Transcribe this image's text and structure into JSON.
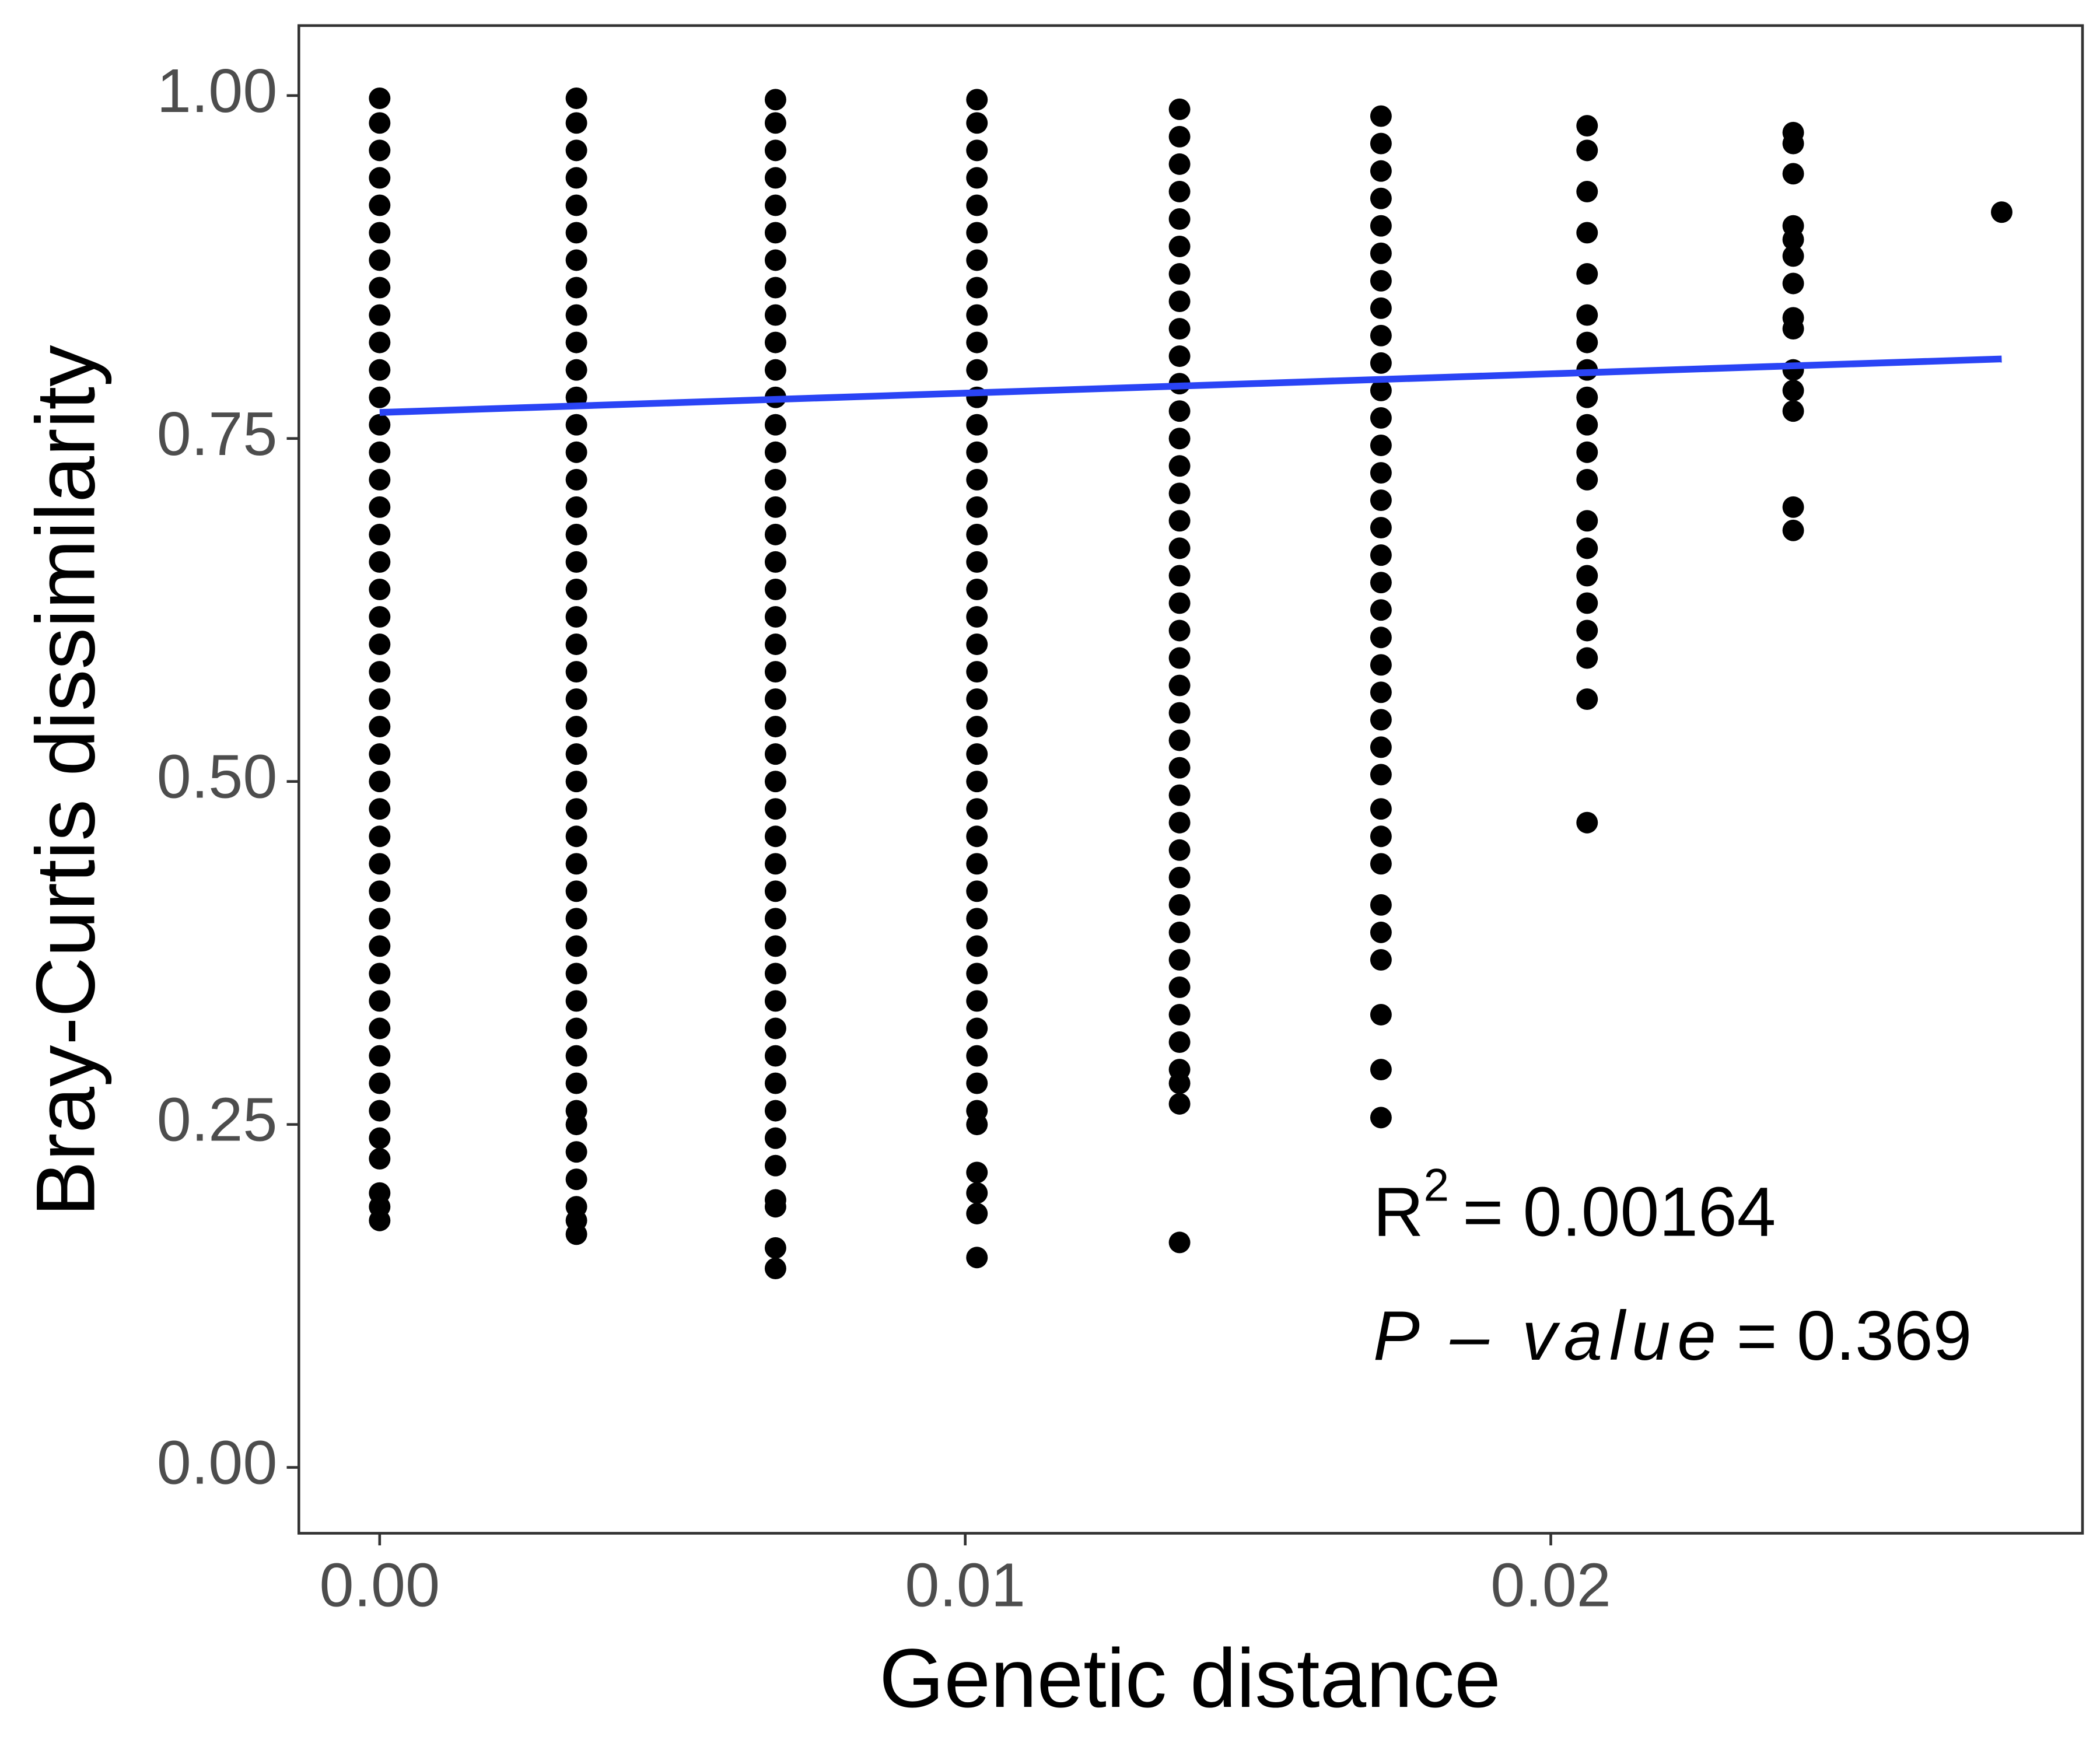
{
  "chart_data": {
    "type": "scatter",
    "xlabel": "Genetic distance",
    "ylabel": "Bray-Curtis dissimilarity",
    "xlim": [
      -0.00138,
      0.02908
    ],
    "ylim": [
      -0.048,
      1.051
    ],
    "xticks": [
      {
        "value": 0,
        "label": "0.00"
      },
      0.01,
      0.02
    ],
    "yticks": [
      {
        "value": 0,
        "label": "0.00"
      },
      0.25,
      {
        "value": 0.5,
        "label": "0.50"
      },
      0.75,
      {
        "value": 1,
        "label": "1.00"
      }
    ],
    "color": "#000000",
    "groups": [
      {
        "x": 0,
        "values": [
          0.998,
          0.98,
          0.96,
          0.94,
          0.92,
          0.9,
          0.88,
          0.86,
          0.84,
          0.82,
          0.8,
          0.78,
          0.76,
          0.74,
          0.72,
          0.7,
          0.68,
          0.66,
          0.64,
          0.62,
          0.6,
          0.58,
          0.56,
          0.54,
          0.52,
          0.5,
          0.48,
          0.46,
          0.44,
          0.42,
          0.4,
          0.38,
          0.36,
          0.34,
          0.32,
          0.3,
          0.28,
          0.26,
          0.24,
          0.225,
          0.2,
          0.19,
          0.18
        ]
      },
      {
        "x": 0.00336,
        "values": [
          0.998,
          0.98,
          0.96,
          0.94,
          0.92,
          0.9,
          0.88,
          0.86,
          0.84,
          0.82,
          0.8,
          0.78,
          0.76,
          0.74,
          0.72,
          0.7,
          0.68,
          0.66,
          0.64,
          0.62,
          0.6,
          0.58,
          0.56,
          0.54,
          0.52,
          0.5,
          0.48,
          0.46,
          0.44,
          0.42,
          0.4,
          0.38,
          0.36,
          0.34,
          0.32,
          0.3,
          0.28,
          0.26,
          0.25,
          0.23,
          0.21,
          0.19,
          0.18,
          0.17
        ]
      },
      {
        "x": 0.00676,
        "values": [
          0.997,
          0.98,
          0.96,
          0.94,
          0.92,
          0.9,
          0.88,
          0.86,
          0.84,
          0.82,
          0.8,
          0.78,
          0.76,
          0.74,
          0.72,
          0.7,
          0.68,
          0.66,
          0.64,
          0.62,
          0.6,
          0.58,
          0.56,
          0.54,
          0.52,
          0.5,
          0.48,
          0.46,
          0.44,
          0.42,
          0.4,
          0.38,
          0.36,
          0.34,
          0.32,
          0.3,
          0.28,
          0.26,
          0.24,
          0.22,
          0.195,
          0.19,
          0.16,
          0.145
        ]
      },
      {
        "x": 0.0102,
        "values": [
          0.997,
          0.98,
          0.96,
          0.94,
          0.92,
          0.9,
          0.88,
          0.86,
          0.84,
          0.82,
          0.8,
          0.78,
          0.76,
          0.74,
          0.72,
          0.7,
          0.68,
          0.66,
          0.64,
          0.62,
          0.6,
          0.58,
          0.56,
          0.54,
          0.52,
          0.5,
          0.48,
          0.46,
          0.44,
          0.42,
          0.4,
          0.38,
          0.36,
          0.34,
          0.32,
          0.3,
          0.28,
          0.26,
          0.25,
          0.215,
          0.2,
          0.185,
          0.153
        ]
      },
      {
        "x": 0.01366,
        "values": [
          0.99,
          0.97,
          0.95,
          0.93,
          0.91,
          0.89,
          0.87,
          0.85,
          0.83,
          0.81,
          0.79,
          0.77,
          0.75,
          0.73,
          0.71,
          0.69,
          0.67,
          0.65,
          0.63,
          0.61,
          0.59,
          0.57,
          0.55,
          0.53,
          0.51,
          0.49,
          0.47,
          0.45,
          0.43,
          0.41,
          0.39,
          0.37,
          0.35,
          0.33,
          0.31,
          0.29,
          0.28,
          0.265,
          0.164
        ]
      },
      {
        "x": 0.0171,
        "values": [
          0.985,
          0.965,
          0.945,
          0.925,
          0.905,
          0.885,
          0.865,
          0.845,
          0.825,
          0.805,
          0.785,
          0.765,
          0.745,
          0.725,
          0.705,
          0.685,
          0.665,
          0.645,
          0.625,
          0.605,
          0.585,
          0.565,
          0.545,
          0.525,
          0.505,
          0.48,
          0.46,
          0.44,
          0.41,
          0.39,
          0.37,
          0.33,
          0.29,
          0.255
        ]
      },
      {
        "x": 0.02062,
        "values": [
          0.978,
          0.96,
          0.93,
          0.9,
          0.87,
          0.84,
          0.82,
          0.8,
          0.78,
          0.76,
          0.74,
          0.72,
          0.69,
          0.67,
          0.65,
          0.63,
          0.61,
          0.59,
          0.56,
          0.47
        ]
      },
      {
        "x": 0.02414,
        "values": [
          0.973,
          0.965,
          0.943,
          0.905,
          0.895,
          0.883,
          0.863,
          0.838,
          0.83,
          0.8,
          0.785,
          0.77,
          0.7,
          0.683
        ]
      },
      {
        "x": 0.0277,
        "values": [
          0.915
        ]
      }
    ],
    "fit": {
      "color": "#2a44f5",
      "x": [
        0,
        0.0277
      ],
      "values": [
        0.769,
        0.808
      ]
    },
    "r2": {
      "symbol": "R",
      "superscript": "2",
      "text": "= 0.00164"
    },
    "p_value": {
      "symbol": "P – value",
      "text": "= 0.369"
    }
  }
}
